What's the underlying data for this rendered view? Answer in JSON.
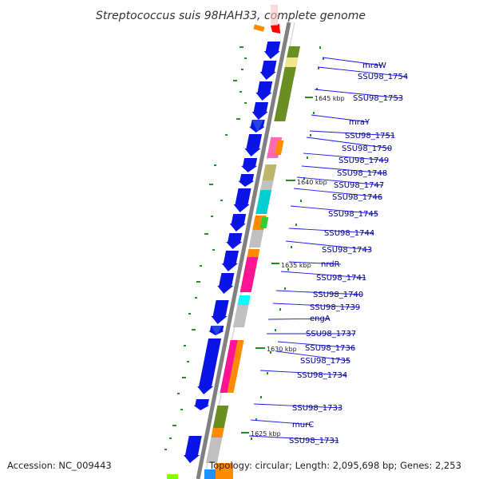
{
  "title": "Streptococcus suis 98HAH33, complete genome",
  "footer": {
    "accession": "Accession: NC_009443",
    "summary": "Topology: circular; Length: 2,095,698 bp; Genes: 2,253"
  },
  "kbp_markers": [
    "1645 kbp",
    "1640 kbp",
    "1635 kbp",
    "1630 kbp",
    "1625 kbp"
  ],
  "gene_labels": [
    "mraW",
    "SSU98_1754",
    "SSU98_1753",
    "mraY",
    "SSU98_1751",
    "SSU98_1750",
    "SSU98_1749",
    "SSU98_1748",
    "SSU98_1747",
    "SSU98_1746",
    "SSU98_1745",
    "SSU98_1744",
    "SSU98_1743",
    "nrdR",
    "SSU98_1741",
    "SSU98_1740",
    "SSU98_1739",
    "engA",
    "SSU98_1737",
    "SSU98_1736",
    "SSU98_1735",
    "SSU98_1734",
    "SSU98_1733",
    "murC",
    "SSU98_1731"
  ],
  "colors": {
    "cds_arrow": "#0a14e6",
    "backbone": "#808080",
    "label_text": "#00008b",
    "leader_line": "#1a1af0",
    "gc_dot": "#2e8b2e"
  }
}
